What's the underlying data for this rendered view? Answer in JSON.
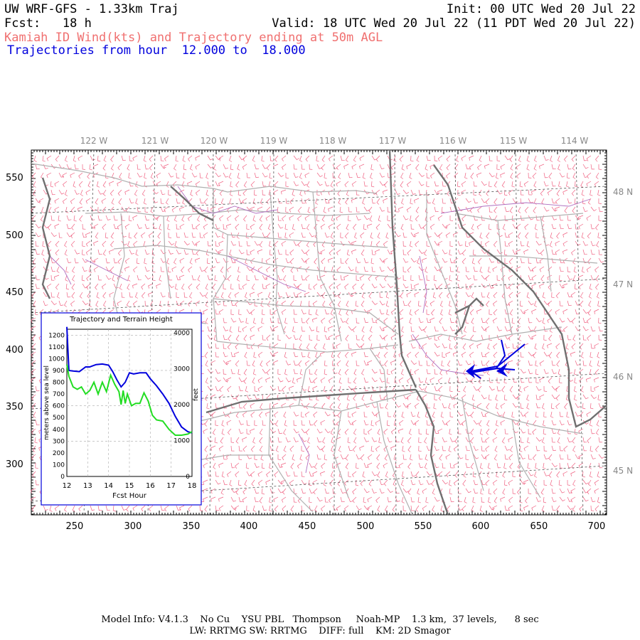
{
  "header": {
    "title": "UW WRF-GFS - 1.33km Traj",
    "init": "Init: 00 UTC Wed 20 Jul 22",
    "fcst": "Fcst:   18 h",
    "valid": "Valid: 18 UTC Wed 20 Jul 22 (11 PDT Wed 20 Jul 22)",
    "subtitle_red": "Kamiah ID Wind(kts) and Trajectory ending at 50m AGL",
    "subtitle_blue": "Trajectories from hour  12.000 to  18.000"
  },
  "map": {
    "lon_labels": [
      "122 W",
      "121 W",
      "120 W",
      "119 W",
      "118 W",
      "117 W",
      "116 W",
      "115 W",
      "114 W"
    ],
    "lat_labels": [
      "48 N",
      "47 N",
      "46 N",
      "45 N"
    ],
    "x_ticks": [
      "250",
      "300",
      "350",
      "400",
      "450",
      "500",
      "550",
      "600",
      "650",
      "700"
    ],
    "y_ticks": [
      "550",
      "500",
      "450",
      "400",
      "350",
      "300"
    ],
    "colors": {
      "wind_barbs": "#f06080",
      "counties": "#b0b0b0",
      "states": "#707070",
      "rivers": "#b070c0",
      "trajectory": "#0000dd"
    }
  },
  "inset": {
    "title": "Trajectory and Terrain Height",
    "ylabel_left": "meters above sea level",
    "ylabel_right": "feet",
    "xlabel": "Fcst Hour",
    "x_ticks": [
      "12",
      "13",
      "14",
      "15",
      "16",
      "17",
      "18"
    ],
    "y_ticks_m": [
      "1200",
      "1100",
      "1000",
      "900",
      "800",
      "700",
      "600",
      "500",
      "400",
      "300",
      "200",
      "100",
      "0"
    ],
    "y_ticks_ft": [
      "4000",
      "3000",
      "2000",
      "1000",
      "0"
    ]
  },
  "chart_data": {
    "type": "line",
    "title": "Trajectory and Terrain Height",
    "xlabel": "Fcst Hour",
    "ylabel": "meters above sea level",
    "xlim": [
      12,
      18
    ],
    "ylim": [
      0,
      1250
    ],
    "series": [
      {
        "color": "#0000dd",
        "x": [
          12.0,
          12.1,
          12.3,
          12.6,
          12.9,
          13.1,
          13.4,
          13.7,
          14.0,
          14.2,
          14.4,
          14.6,
          14.8,
          15.0,
          15.2,
          15.5,
          15.8,
          16.0,
          16.3,
          16.6,
          16.9,
          17.2,
          17.5,
          17.8,
          18.0
        ],
        "y": [
          1270,
          900,
          895,
          890,
          930,
          930,
          950,
          955,
          945,
          890,
          820,
          760,
          800,
          880,
          870,
          880,
          880,
          830,
          770,
          700,
          620,
          510,
          420,
          380,
          370
        ]
      },
      {
        "color": "#22dd22",
        "x": [
          12.0,
          12.1,
          12.3,
          12.5,
          12.7,
          12.9,
          13.1,
          13.3,
          13.5,
          13.7,
          13.9,
          14.1,
          14.3,
          14.5,
          14.6,
          14.7,
          14.8,
          14.9,
          15.1,
          15.3,
          15.5,
          15.7,
          15.9,
          16.1,
          16.3,
          16.6,
          16.9,
          17.2,
          17.5,
          17.8,
          18.0
        ],
        "y": [
          950,
          850,
          760,
          740,
          760,
          700,
          730,
          800,
          700,
          800,
          720,
          860,
          780,
          720,
          610,
          730,
          620,
          700,
          600,
          620,
          620,
          710,
          640,
          520,
          480,
          470,
          400,
          350,
          350,
          360,
          380
        ]
      }
    ]
  },
  "footer": {
    "line1": "Model Info: V4.1.3    No Cu    YSU PBL   Thompson     Noah-MP    1.3 km,  37 levels,      8 sec",
    "line2": "LW: RRTMG SW: RRTMG    DIFF: full    KM: 2D Smagor"
  }
}
